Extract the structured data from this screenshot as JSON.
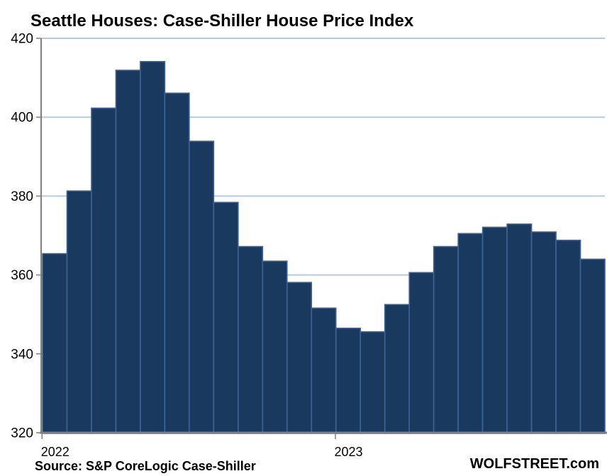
{
  "header": {
    "title": "Seattle Houses: Case-Shiller House Price Index"
  },
  "footer": {
    "source": "Source: S&P CoreLogic Case-Shiller",
    "watermark": "WOLFSTREET.com"
  },
  "chart_data": {
    "type": "bar",
    "title": "Seattle Houses: Case-Shiller House Price Index",
    "categories": [
      "Jan 2022",
      "Feb 2022",
      "Mar 2022",
      "Apr 2022",
      "May 2022",
      "Jun 2022",
      "Jul 2022",
      "Aug 2022",
      "Sep 2022",
      "Oct 2022",
      "Nov 2022",
      "Dec 2022",
      "Jan 2023",
      "Feb 2023",
      "Mar 2023",
      "Apr 2023",
      "May 2023",
      "Jun 2023",
      "Jul 2023",
      "Aug 2023",
      "Sep 2023",
      "Oct 2023",
      "Nov 2023"
    ],
    "values": [
      365.4,
      381.3,
      402.3,
      411.9,
      414.1,
      406.1,
      393.9,
      378.4,
      367.2,
      363.5,
      358.1,
      351.6,
      346.5,
      345.6,
      352.5,
      360.6,
      367.2,
      370.5,
      372.1,
      372.9,
      370.9,
      368.8,
      364.0
    ],
    "xlabel": "",
    "ylabel": "",
    "ylim": [
      320,
      420
    ],
    "yticks": [
      320,
      340,
      360,
      380,
      400,
      420
    ],
    "xticks": [
      {
        "index": 0,
        "label": "2022"
      },
      {
        "index": 12,
        "label": "2023"
      }
    ],
    "grid": "horizontal",
    "legend": "none",
    "colors": {
      "bar_fill": "#1a395e",
      "bar_border": "#3f6394",
      "gridline": "#b6cbe2",
      "axis": "#808080",
      "text": "#000000"
    }
  }
}
